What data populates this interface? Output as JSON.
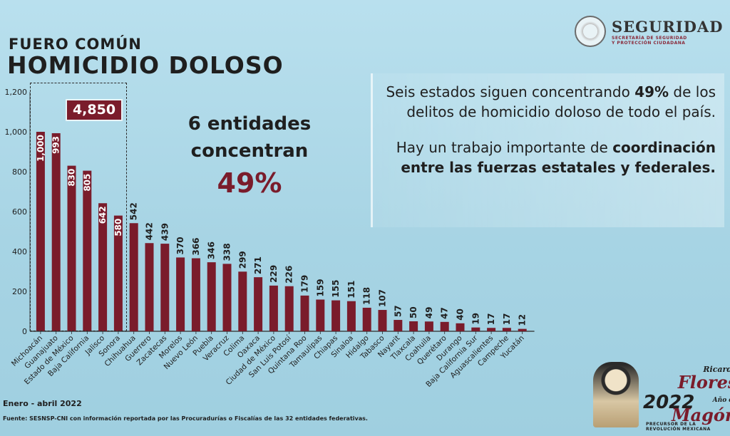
{
  "header": {
    "subtitle": "FUERO COMÚN",
    "title": "HOMICIDIO DOLOSO"
  },
  "logo": {
    "name": "SEGURIDAD",
    "sub1": "SECRETARÍA DE SEGURIDAD",
    "sub2": "Y PROTECCIÓN CIUDADANA",
    "icon": "coat-of-arms-icon"
  },
  "callout": {
    "line1": "6 entidades",
    "line2": "concentran",
    "pct": "49%"
  },
  "highlight_total": "4,850",
  "textbox": {
    "p1a": "Seis estados siguen concentrando",
    "p1b": "49%",
    "p1c": "de los delitos de homicidio doloso de todo el país.",
    "p2a": "Hay un trabajo importante de",
    "p2b": "coordinación entre las fuerzas estatales y federales",
    "p2c": "."
  },
  "footer": {
    "date": "Enero - abril 2022",
    "source": "Fuente: SESNSP-CNI con información reportada por las Procuradurías o Fiscalías de las 32 entidades federativas."
  },
  "badge": {
    "year": "2022",
    "n1": "Ricardo",
    "n2": "Flores",
    "n3": "Año de",
    "n4": "Magón",
    "tag": "PRECURSOR DE LA REVOLUCIÓN MEXICANA",
    "icon": "portrait-icon"
  },
  "colors": {
    "bar": "#7a1c2b",
    "background": "#a9d6e6",
    "text": "#1f1f1f"
  },
  "chart_data": {
    "type": "bar",
    "title": "HOMICIDIO DOLOSO",
    "categories": [
      "Michoacán",
      "Guanajuato",
      "Estado de México",
      "Baja California",
      "Jalisco",
      "Sonora",
      "Chihuahua",
      "Guerrero",
      "Zacatecas",
      "Morelos",
      "Nuevo León",
      "Puebla",
      "Veracruz",
      "Colima",
      "Oaxaca",
      "Ciudad de México",
      "San Luis Potosí",
      "Quintana Roo",
      "Tamaulipas",
      "Chiapas",
      "Sinaloa",
      "Hidalgo",
      "Tabasco",
      "Nayarit",
      "Tlaxcala",
      "Coahuila",
      "Querétaro",
      "Durango",
      "Baja California Sur",
      "Aguascalientes",
      "Campeche",
      "Yucatán"
    ],
    "values": [
      1000,
      993,
      830,
      805,
      642,
      580,
      542,
      442,
      439,
      370,
      366,
      346,
      338,
      299,
      271,
      229,
      226,
      179,
      159,
      155,
      151,
      118,
      107,
      57,
      50,
      49,
      47,
      40,
      19,
      17,
      17,
      12
    ],
    "value_labels": [
      "1,000",
      "993",
      "830",
      "805",
      "642",
      "580",
      "542",
      "442",
      "439",
      "370",
      "366",
      "346",
      "338",
      "299",
      "271",
      "229",
      "226",
      "179",
      "159",
      "155",
      "151",
      "118",
      "107",
      "57",
      "50",
      "49",
      "47",
      "40",
      "19",
      "17",
      "17",
      "12"
    ],
    "ylim": [
      0,
      1200
    ],
    "yticks": [
      0,
      200,
      400,
      600,
      800,
      1000,
      1200
    ],
    "ytick_labels": [
      "0",
      "200",
      "400",
      "600",
      "800",
      "1,000",
      "1,200"
    ],
    "grid": false,
    "highlight_count": 6
  }
}
